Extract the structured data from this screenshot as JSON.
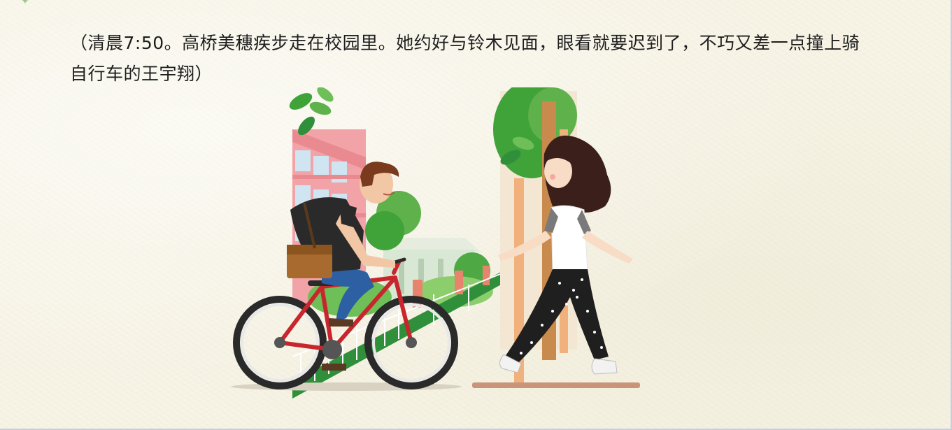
{
  "scene": {
    "narration": "（清晨7:50。高桥美穗疾步走在校园里。她约好与铃木见面，眼看就要迟到了，不巧又差一点撞上骑自行车的王宇翔）"
  },
  "decor": {
    "star_symbol": "✦",
    "colors": {
      "background": "#f7f4e6",
      "text": "#1e1e1e",
      "bike_frame": "#c8262c",
      "tree_green": "#3fa33a",
      "building_pink": "#f2a3a8"
    }
  }
}
